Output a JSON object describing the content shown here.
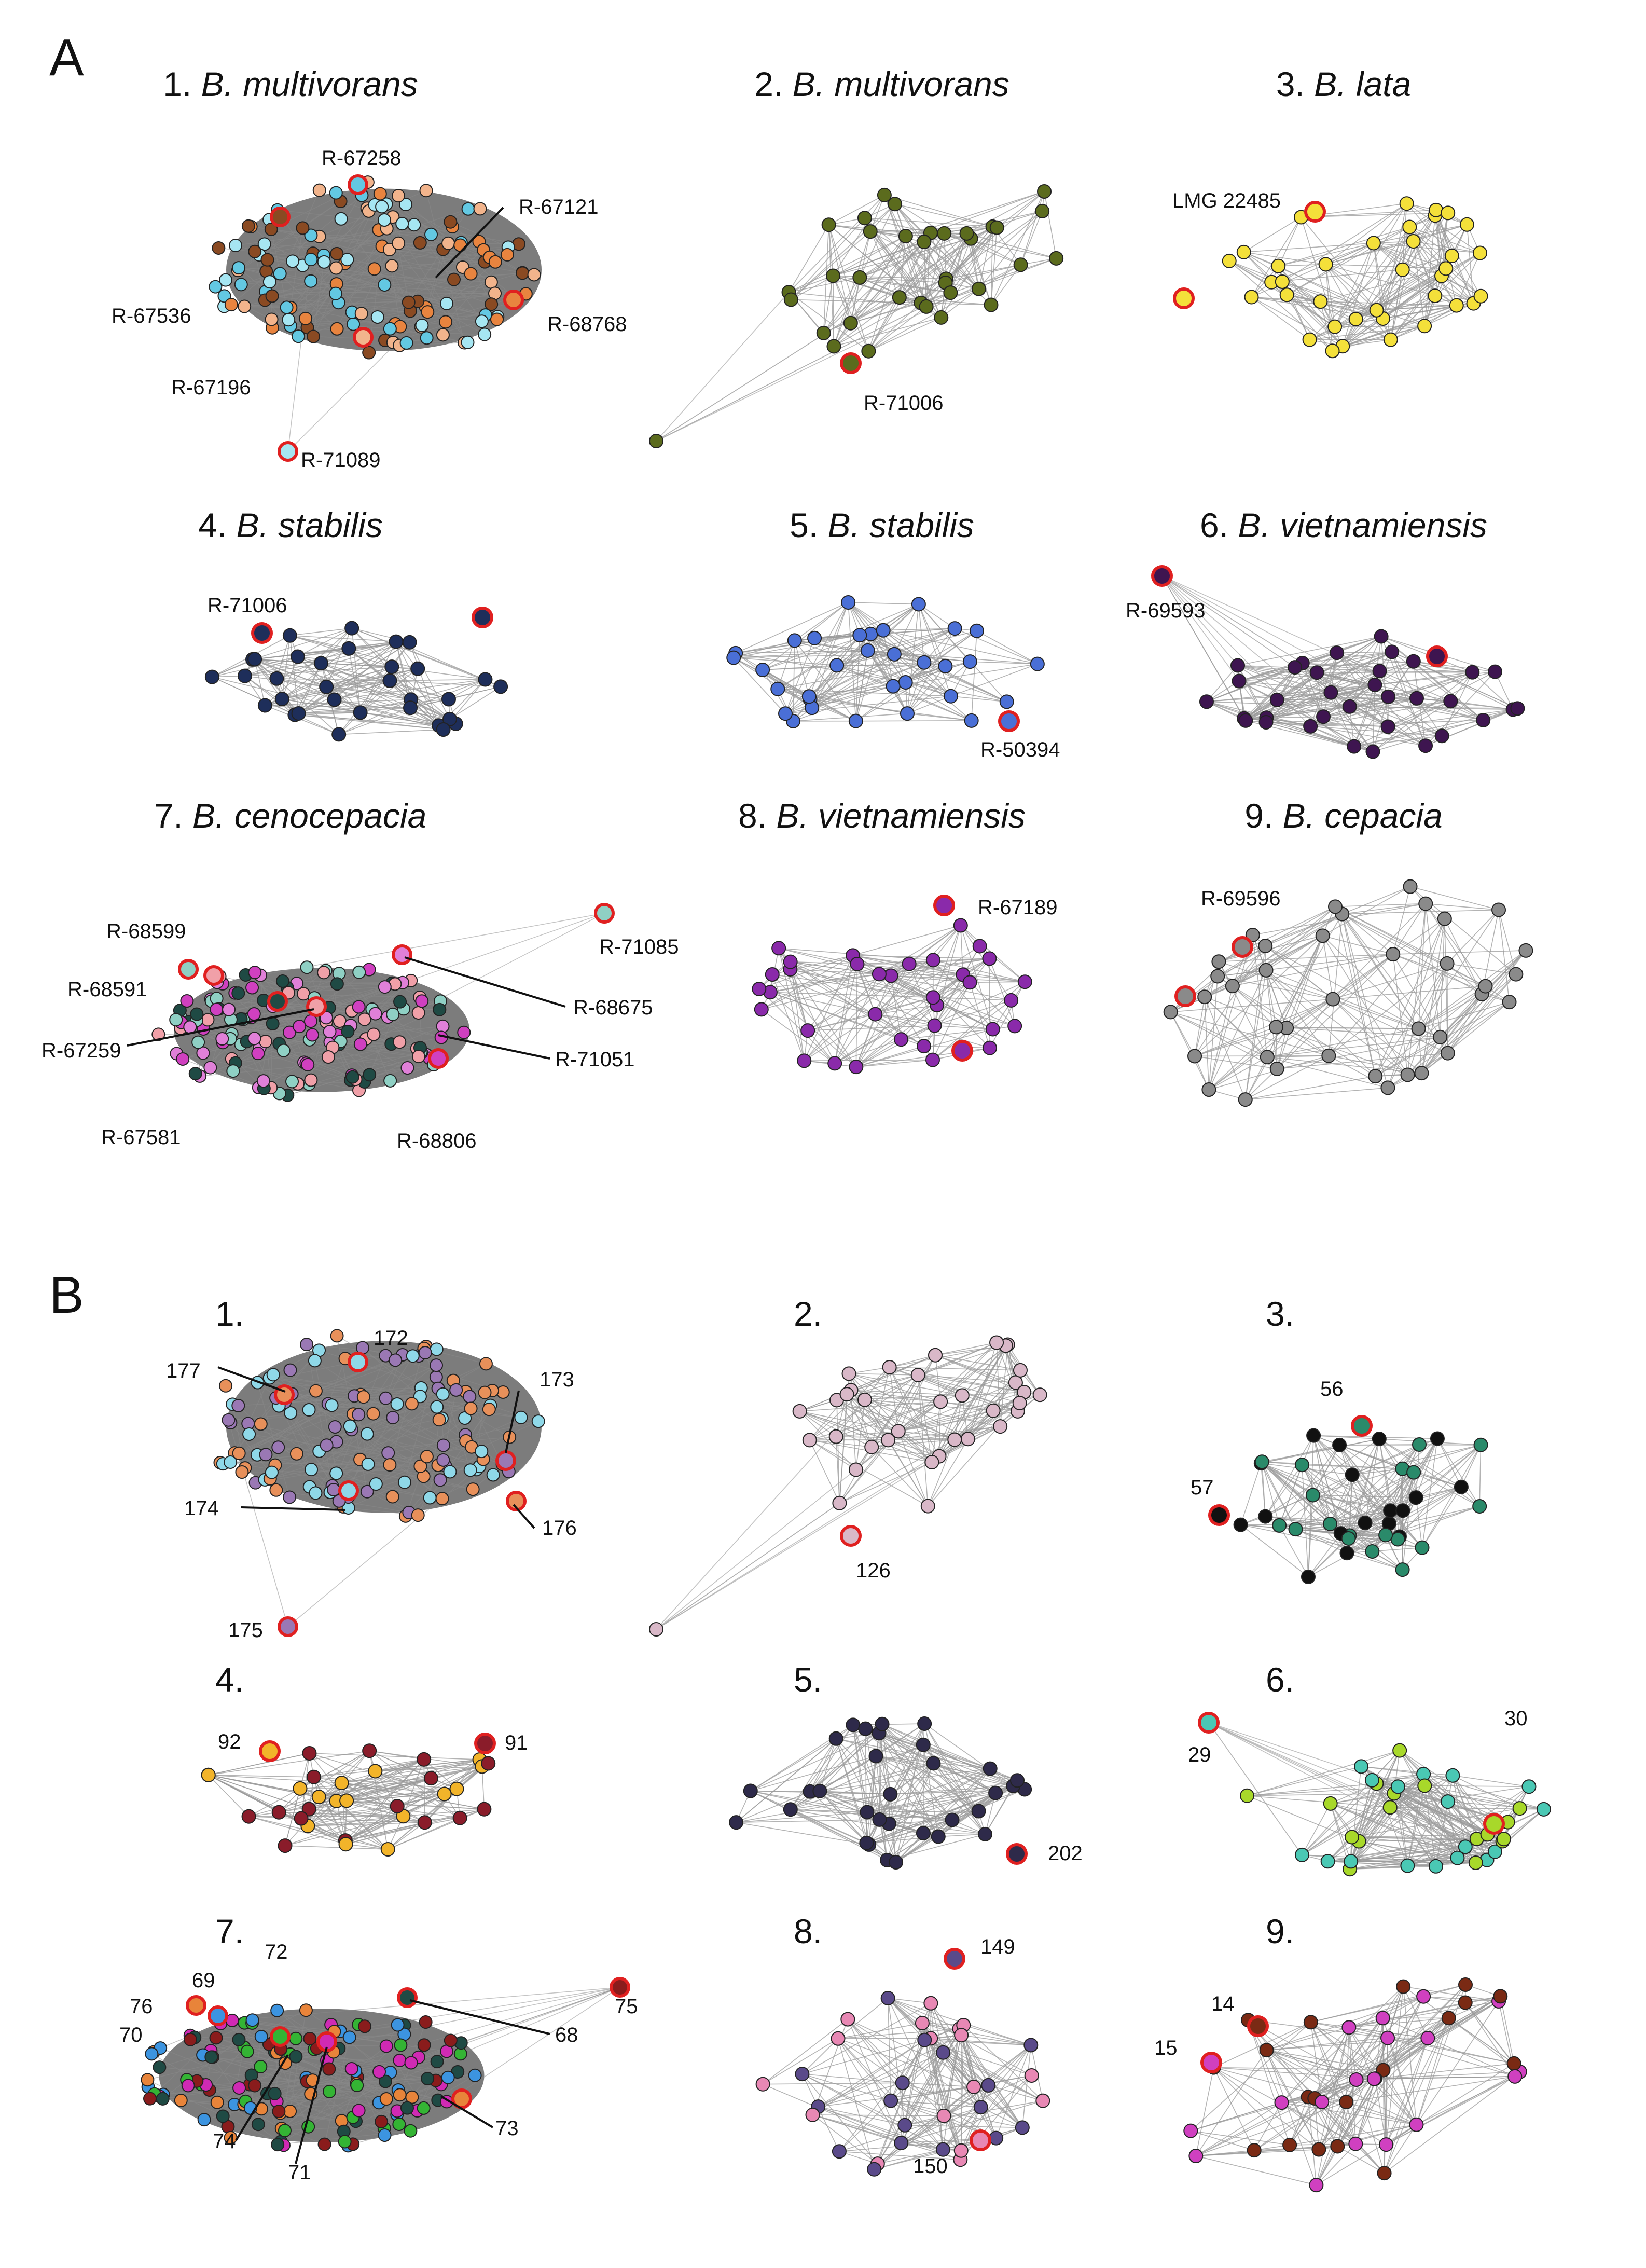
{
  "figure": {
    "panel_A": {
      "letter": "A",
      "networks": [
        {
          "number": "1.",
          "species": "B. multivorans",
          "colors": [
            "#63c8e2",
            "#8a4a22",
            "#f2b48c",
            "#e8843f",
            "#a6e6f2"
          ],
          "labels": [
            "R-67258",
            "R-67121",
            "R-67536",
            "R-68768",
            "R-67196",
            "R-71089"
          ]
        },
        {
          "number": "2.",
          "species": "B. multivorans",
          "colors": [
            "#5b6b1d"
          ],
          "labels": [
            "R-71006"
          ]
        },
        {
          "number": "3.",
          "species": "B. lata",
          "colors": [
            "#f4e03a"
          ],
          "labels": [
            "LMG 22485"
          ]
        },
        {
          "number": "4.",
          "species": "B. stabilis",
          "colors": [
            "#1e2e5a"
          ],
          "labels": [
            "R-71006"
          ]
        },
        {
          "number": "5.",
          "species": "B. stabilis",
          "colors": [
            "#4a6fd6"
          ],
          "labels": [
            "R-50394"
          ]
        },
        {
          "number": "6.",
          "species": "B. vietnamiensis",
          "colors": [
            "#3e1550"
          ],
          "labels": [
            "R-69593"
          ]
        },
        {
          "number": "7.",
          "species": "B. cenocepacia",
          "colors": [
            "#8fd0c4",
            "#f0a0a8",
            "#1f4a44",
            "#e080d8",
            "#d040c0"
          ],
          "labels": [
            "R-68599",
            "R-68591",
            "R-67259",
            "R-67581",
            "R-68675",
            "R-71051",
            "R-68806",
            "R-71085"
          ]
        },
        {
          "number": "8.",
          "species": "B. vietnamiensis",
          "colors": [
            "#8a2aaa"
          ],
          "labels": [
            "R-67189"
          ]
        },
        {
          "number": "9.",
          "species": "B. cepacia",
          "colors": [
            "#8a8a8a"
          ],
          "labels": [
            "R-69596"
          ]
        }
      ]
    },
    "panel_B": {
      "letter": "B",
      "networks": [
        {
          "number": "1.",
          "colors": [
            "#8fd8e8",
            "#e8905a",
            "#9a78b4"
          ],
          "labels": [
            "172",
            "177",
            "173",
            "174",
            "176",
            "175"
          ]
        },
        {
          "number": "2.",
          "colors": [
            "#d9b8c8"
          ],
          "labels": [
            "126"
          ]
        },
        {
          "number": "3.",
          "colors": [
            "#2a8a6a",
            "#111111"
          ],
          "labels": [
            "56",
            "57"
          ]
        },
        {
          "number": "4.",
          "colors": [
            "#f2b42a",
            "#8a1c2a"
          ],
          "labels": [
            "92",
            "91"
          ]
        },
        {
          "number": "5.",
          "colors": [
            "#2e2a4a"
          ],
          "labels": [
            "202"
          ]
        },
        {
          "number": "6.",
          "colors": [
            "#4ac8b4",
            "#a8d82a"
          ],
          "labels": [
            "29",
            "30"
          ]
        },
        {
          "number": "7.",
          "colors": [
            "#e8843a",
            "#3c94e0",
            "#34b434",
            "#1f4a44",
            "#d02ab4",
            "#8a1c1c"
          ],
          "labels": [
            "76",
            "69",
            "72",
            "70",
            "68",
            "73",
            "74",
            "71",
            "75"
          ]
        },
        {
          "number": "8.",
          "colors": [
            "#5a4a8a",
            "#e888b4"
          ],
          "labels": [
            "149",
            "150"
          ]
        },
        {
          "number": "9.",
          "colors": [
            "#7a2a14",
            "#d040c0"
          ],
          "labels": [
            "14",
            "15"
          ]
        }
      ]
    }
  }
}
